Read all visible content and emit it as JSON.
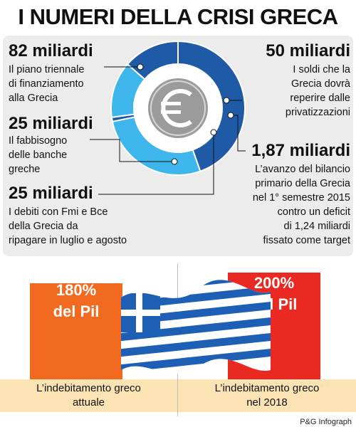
{
  "title": "I NUMERI DELLA CRISI GRECA",
  "colors": {
    "dark_blue": "#1f5aa6",
    "light_blue": "#3eb6ec",
    "orange": "#f26a1f",
    "red": "#ea2a22",
    "cream": "#fbe3b4"
  },
  "icons": {
    "center": "euro-icon"
  },
  "chart_data": [
    {
      "type": "pie",
      "style": "donut",
      "unit": "miliardi",
      "slices": [
        {
          "value": 82,
          "label": "82 miliardi",
          "description": "Il piano triennale\ndi finanziamento\nalla Grecia",
          "color": "#1f5aa6"
        },
        {
          "value": 50,
          "label": "50 miliardi",
          "description": "I soldi che la\nGrecia dovrà\nreperire dalle\nprivatizzazioni",
          "color": "#3eb6ec"
        },
        {
          "value": 1.87,
          "label": "1,87 miliardi",
          "description": "L’avanzo del bilancio\nprimario della Grecia\nnel 1° semestre 2015\ncontro un deficit\ndi 1,24 miliardi\nfissato come target",
          "color": "#1f5aa6"
        },
        {
          "value": 25,
          "label": "25 miliardi",
          "description": "Il fabbisogno\ndelle banche\ngreche",
          "color": "#3eb6ec"
        },
        {
          "value": 25,
          "label": "25 miliardi",
          "description": "I debiti con Fmi e Bce\ndella Grecia da\nripagare in luglio e agosto",
          "color": "#1f5aa6"
        }
      ]
    },
    {
      "type": "bar",
      "categories": [
        "L’indebitamento greco\nattuale",
        "L’indebitamento greco\nnel 2018"
      ],
      "values": [
        180,
        200
      ],
      "labels": [
        "180%\ndel Pil",
        "200%\ndel Pil"
      ],
      "colors": [
        "#f26a1f",
        "#ea2a22"
      ],
      "unit": "% del Pil"
    }
  ],
  "source": "P&G Infograph"
}
